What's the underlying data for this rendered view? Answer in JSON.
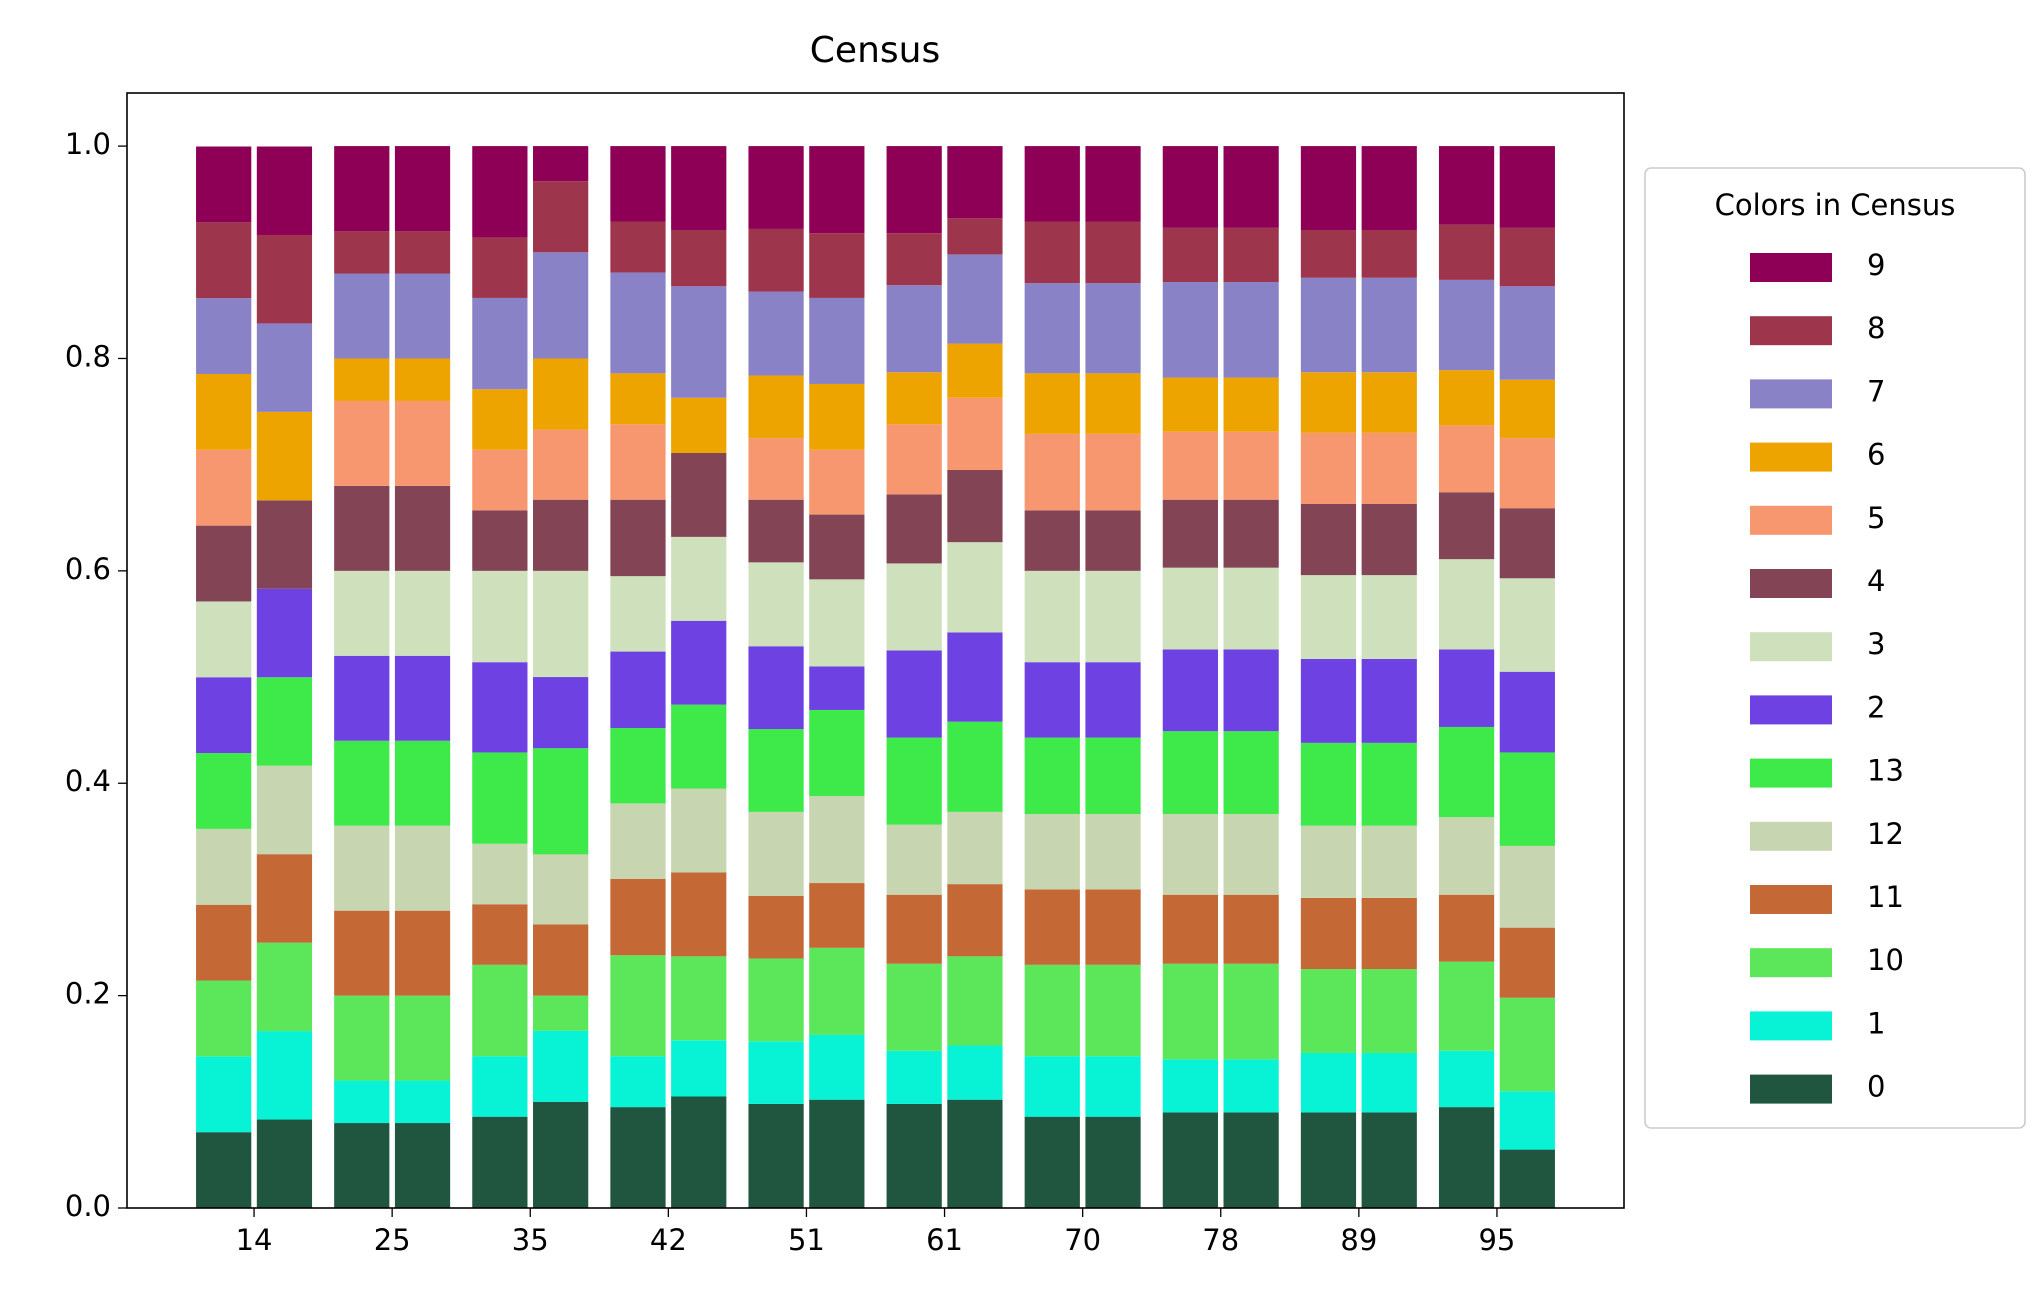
{
  "chart_data": {
    "type": "grouped_stacked_bar",
    "title": "Census",
    "categories": [
      "14",
      "25",
      "35",
      "42",
      "51",
      "61",
      "70",
      "78",
      "89",
      "95"
    ],
    "legend_title": "Colors in Census",
    "legend": "right",
    "ylim": [
      0,
      1.05
    ],
    "yticks": [
      {
        "value": 0,
        "label": "0.0"
      },
      {
        "value": 0.2,
        "label": "0.2"
      },
      {
        "value": 0.4,
        "label": "0.4"
      },
      {
        "value": 0.6,
        "label": "0.6"
      },
      {
        "value": 0.8,
        "label": "0.8"
      },
      {
        "value": 1,
        "label": "1.0"
      }
    ],
    "series": [
      {
        "name": "0",
        "color": "#20563f",
        "values": [
          [
            0.0714,
            0.0833
          ],
          [
            0.08,
            0.08
          ],
          [
            0.086,
            0.1
          ],
          [
            0.095,
            0.105
          ],
          [
            0.098,
            0.102
          ],
          [
            0.098,
            0.102
          ],
          [
            0.086,
            0.086
          ],
          [
            0.09,
            0.09
          ],
          [
            0.09,
            0.09
          ],
          [
            0.095,
            0.055
          ]
        ]
      },
      {
        "name": "1",
        "color": "#08f3d6",
        "values": [
          [
            0.0714,
            0.0833
          ],
          [
            0.04,
            0.04
          ],
          [
            0.057,
            0.067
          ],
          [
            0.048,
            0.053
          ],
          [
            0.059,
            0.061
          ],
          [
            0.05,
            0.051
          ],
          [
            0.057,
            0.057
          ],
          [
            0.05,
            0.05
          ],
          [
            0.056,
            0.056
          ],
          [
            0.053,
            0.055
          ]
        ]
      },
      {
        "name": "10",
        "color": "#5ce65a",
        "values": [
          [
            0.0714,
            0.0833
          ],
          [
            0.08,
            0.08
          ],
          [
            0.086,
            0.033
          ],
          [
            0.095,
            0.079
          ],
          [
            0.078,
            0.082
          ],
          [
            0.082,
            0.084
          ],
          [
            0.086,
            0.086
          ],
          [
            0.09,
            0.09
          ],
          [
            0.079,
            0.079
          ],
          [
            0.084,
            0.088
          ]
        ]
      },
      {
        "name": "11",
        "color": "#c46836",
        "values": [
          [
            0.0714,
            0.0833
          ],
          [
            0.08,
            0.08
          ],
          [
            0.057,
            0.067
          ],
          [
            0.072,
            0.079
          ],
          [
            0.059,
            0.061
          ],
          [
            0.065,
            0.068
          ],
          [
            0.071,
            0.071
          ],
          [
            0.065,
            0.065
          ],
          [
            0.067,
            0.067
          ],
          [
            0.063,
            0.066
          ]
        ]
      },
      {
        "name": "12",
        "color": "#c7d6b0",
        "values": [
          [
            0.0714,
            0.0833
          ],
          [
            0.08,
            0.08
          ],
          [
            0.057,
            0.066
          ],
          [
            0.071,
            0.079
          ],
          [
            0.079,
            0.082
          ],
          [
            0.066,
            0.068
          ],
          [
            0.071,
            0.071
          ],
          [
            0.076,
            0.076
          ],
          [
            0.068,
            0.068
          ],
          [
            0.073,
            0.077
          ]
        ]
      },
      {
        "name": "13",
        "color": "#3ee94a",
        "values": [
          [
            0.0714,
            0.0833
          ],
          [
            0.08,
            0.08
          ],
          [
            0.086,
            0.1
          ],
          [
            0.071,
            0.079
          ],
          [
            0.078,
            0.081
          ],
          [
            0.082,
            0.085
          ],
          [
            0.072,
            0.072
          ],
          [
            0.078,
            0.078
          ],
          [
            0.078,
            0.078
          ],
          [
            0.085,
            0.088
          ]
        ]
      },
      {
        "name": "2",
        "color": "#6e42e2",
        "values": [
          [
            0.0714,
            0.0833
          ],
          [
            0.08,
            0.08
          ],
          [
            0.085,
            0.067
          ],
          [
            0.072,
            0.079
          ],
          [
            0.078,
            0.041
          ],
          [
            0.082,
            0.084
          ],
          [
            0.071,
            0.071
          ],
          [
            0.077,
            0.077
          ],
          [
            0.079,
            0.079
          ],
          [
            0.073,
            0.076
          ]
        ]
      },
      {
        "name": "3",
        "color": "#cee0bc",
        "values": [
          [
            0.0714,
            0
          ],
          [
            0.08,
            0.08
          ],
          [
            0.086,
            0.1
          ],
          [
            0.071,
            0.079
          ],
          [
            0.079,
            0.082
          ],
          [
            0.082,
            0.085
          ],
          [
            0.086,
            0.086
          ],
          [
            0.077,
            0.077
          ],
          [
            0.079,
            0.079
          ],
          [
            0.085,
            0.088
          ]
        ]
      },
      {
        "name": "4",
        "color": "#834556",
        "values": [
          [
            0.0714,
            0.0833
          ],
          [
            0.08,
            0.08
          ],
          [
            0.057,
            0.067
          ],
          [
            0.072,
            0.079
          ],
          [
            0.059,
            0.061
          ],
          [
            0.065,
            0.068
          ],
          [
            0.057,
            0.057
          ],
          [
            0.064,
            0.064
          ],
          [
            0.067,
            0.067
          ],
          [
            0.063,
            0.066
          ]
        ]
      },
      {
        "name": "5",
        "color": "#f7976f",
        "values": [
          [
            0.0714,
            0
          ],
          [
            0.08,
            0.08
          ],
          [
            0.057,
            0.066
          ],
          [
            0.071,
            0
          ],
          [
            0.058,
            0.061
          ],
          [
            0.066,
            0.068
          ],
          [
            0.072,
            0.072
          ],
          [
            0.064,
            0.064
          ],
          [
            0.067,
            0.067
          ],
          [
            0.063,
            0.066
          ]
        ]
      },
      {
        "name": "6",
        "color": "#eda400",
        "values": [
          [
            0.0714,
            0.0833
          ],
          [
            0.04,
            0.04
          ],
          [
            0.057,
            0.067
          ],
          [
            0.048,
            0.052
          ],
          [
            0.059,
            0.062
          ],
          [
            0.049,
            0.051
          ],
          [
            0.057,
            0.057
          ],
          [
            0.051,
            0.051
          ],
          [
            0.057,
            0.057
          ],
          [
            0.052,
            0.055
          ]
        ]
      },
      {
        "name": "7",
        "color": "#8a82c6",
        "values": [
          [
            0.0714,
            0.0833
          ],
          [
            0.08,
            0.08
          ],
          [
            0.086,
            0.1
          ],
          [
            0.095,
            0.105
          ],
          [
            0.079,
            0.081
          ],
          [
            0.082,
            0.084
          ],
          [
            0.085,
            0.085
          ],
          [
            0.09,
            0.09
          ],
          [
            0.089,
            0.089
          ],
          [
            0.085,
            0.088
          ]
        ]
      },
      {
        "name": "8",
        "color": "#9d364d",
        "values": [
          [
            0.0714,
            0.0833
          ],
          [
            0.04,
            0.04
          ],
          [
            0.057,
            0.067
          ],
          [
            0.048,
            0.053
          ],
          [
            0.059,
            0.061
          ],
          [
            0.049,
            0.034
          ],
          [
            0.058,
            0.058
          ],
          [
            0.051,
            0.051
          ],
          [
            0.045,
            0.045
          ],
          [
            0.052,
            0.055
          ]
        ]
      },
      {
        "name": "9",
        "color": "#8d0056",
        "values": [
          [
            0.0714,
            0.0833
          ],
          [
            0.08,
            0.08
          ],
          [
            0.086,
            0.033
          ],
          [
            0.071,
            0.079
          ],
          [
            0.078,
            0.082
          ],
          [
            0.082,
            0.068
          ],
          [
            0.071,
            0.071
          ],
          [
            0.077,
            0.077
          ],
          [
            0.079,
            0.079
          ],
          [
            0.074,
            0.077
          ]
        ]
      }
    ]
  }
}
